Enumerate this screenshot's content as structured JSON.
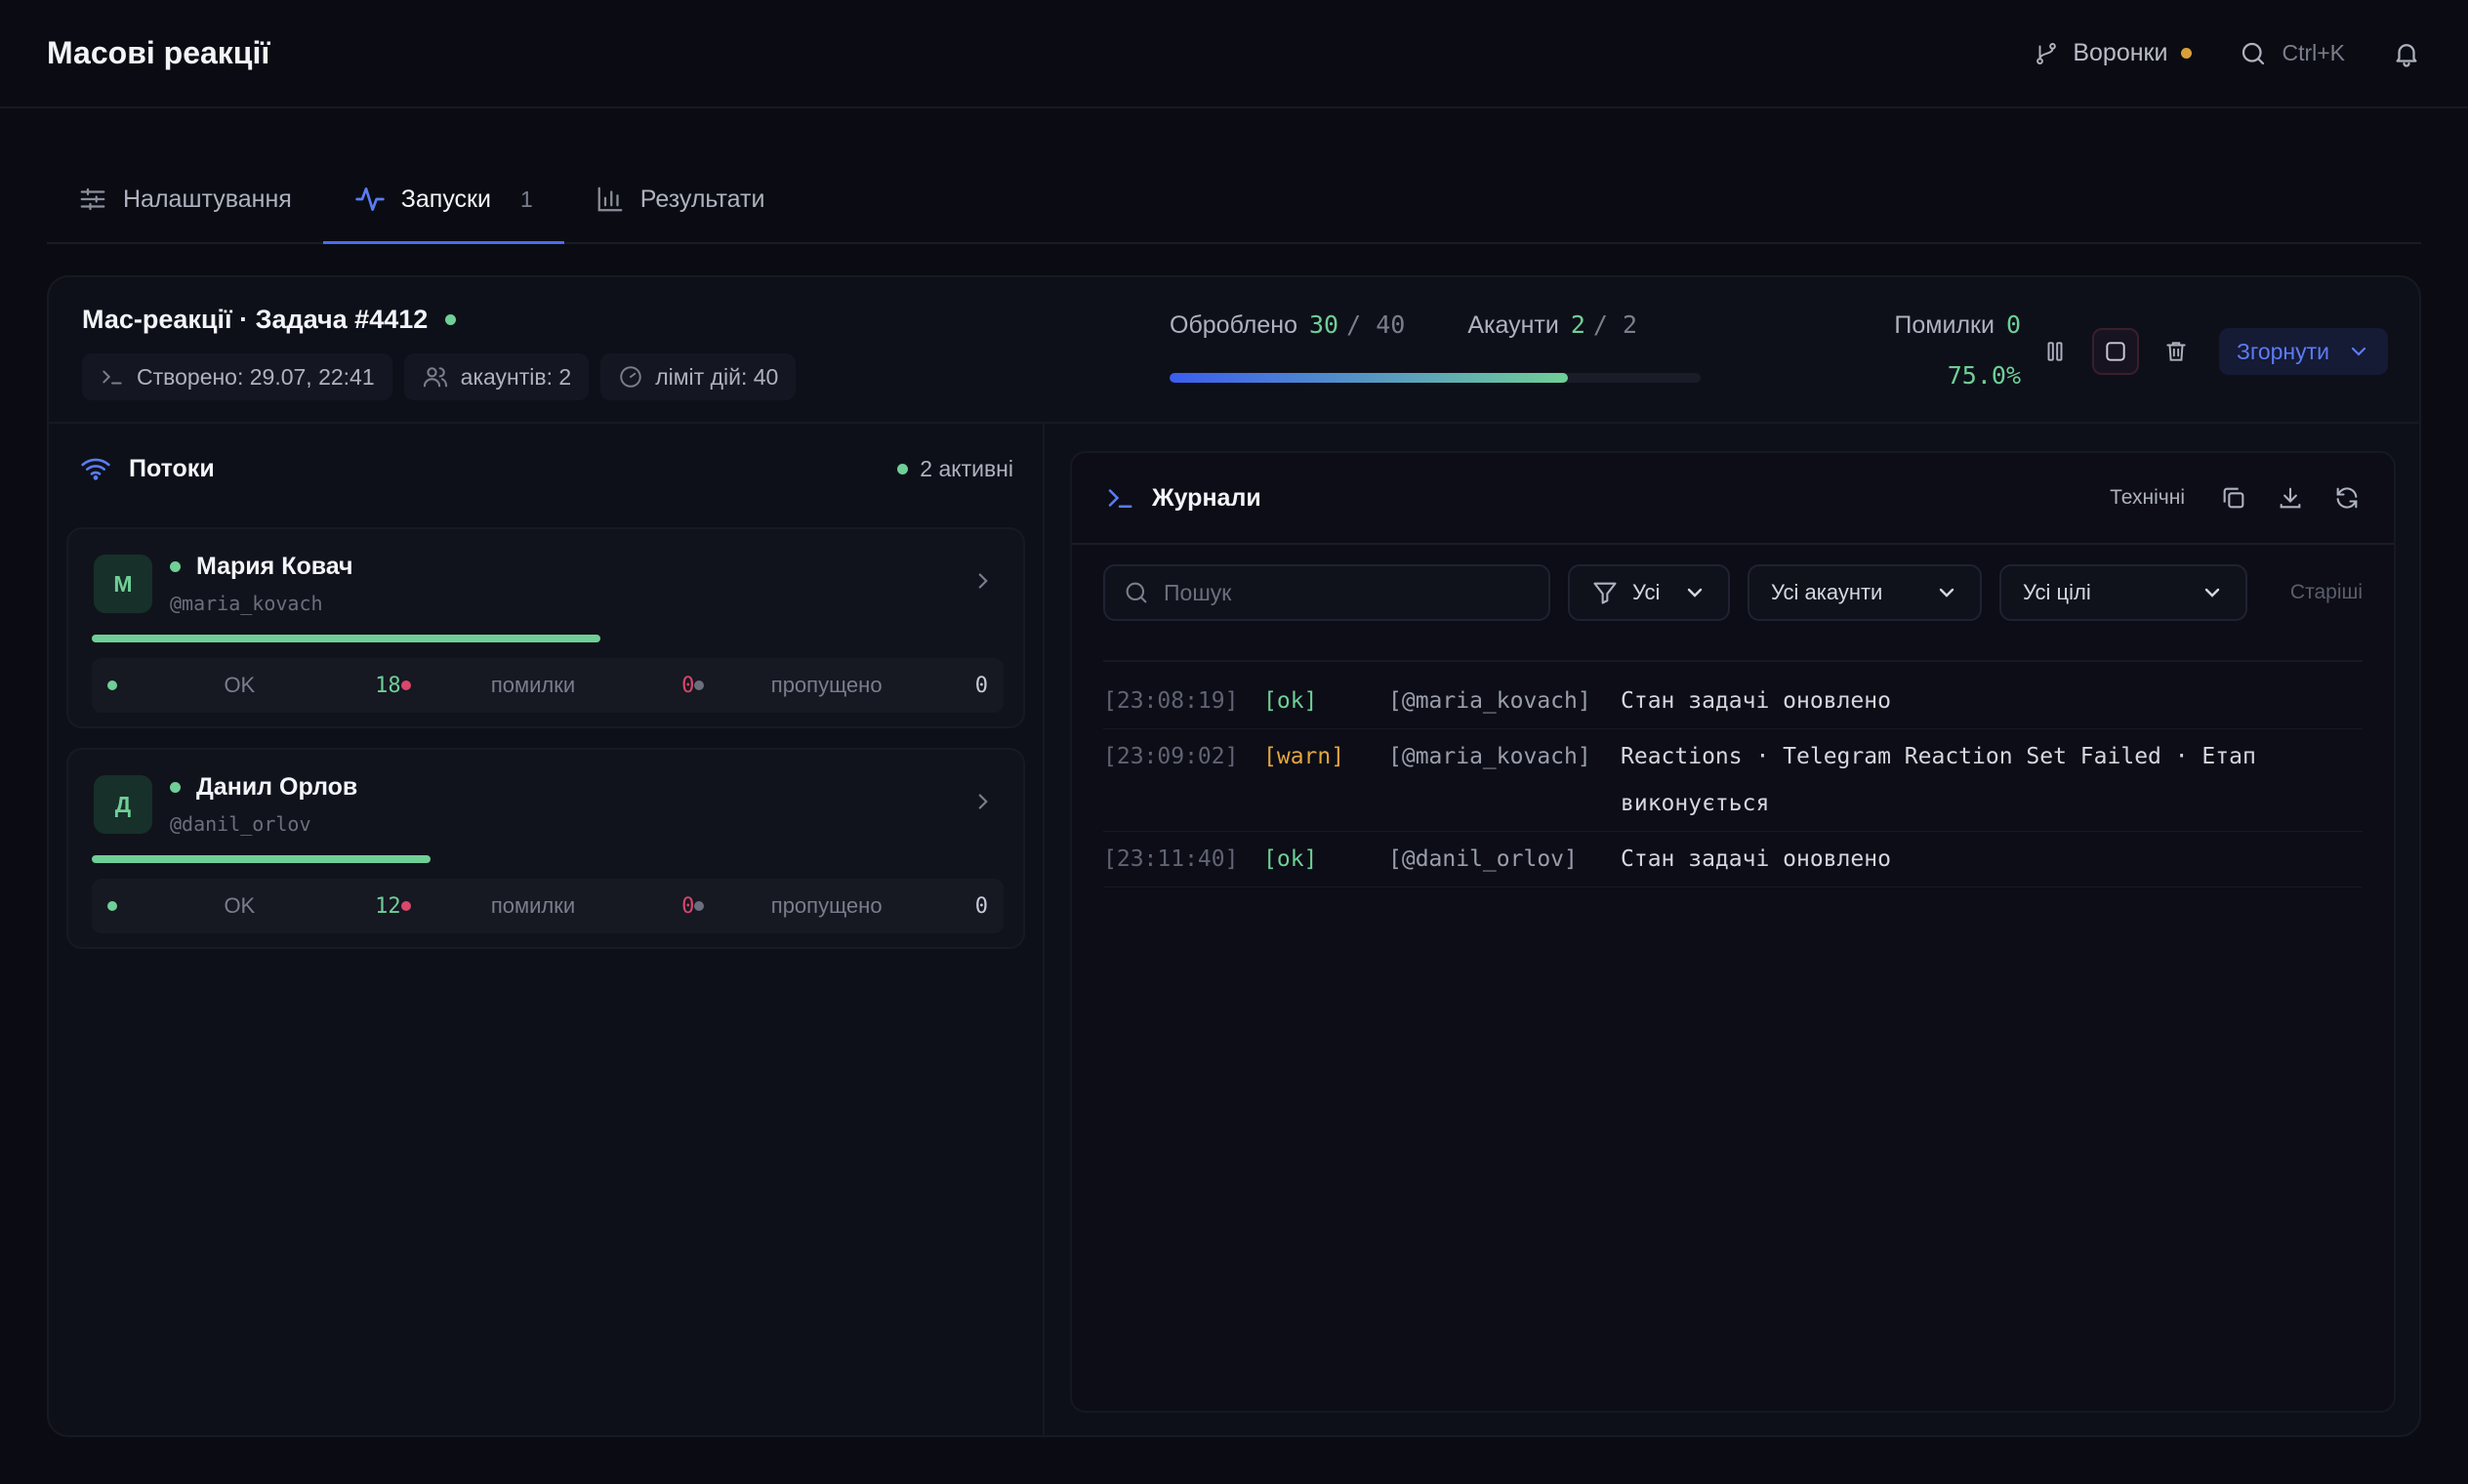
{
  "header": {
    "title": "Масові реакції",
    "funnels_label": "Воронки",
    "search_shortcut": "Ctrl+K"
  },
  "tabs": [
    {
      "label": "Налаштування"
    },
    {
      "label": "Запуски",
      "count": "1"
    },
    {
      "label": "Результати"
    }
  ],
  "task": {
    "title": "Мас-реакції · Задача #4412",
    "chips": {
      "created": "Створено: 29.07, 22:41",
      "accounts": "акаунтів: 2",
      "limit": "ліміт дій: 40"
    },
    "processed_label": "Оброблено",
    "processed_value": "30",
    "processed_total": "/ 40",
    "accounts_label": "Акаунти",
    "accounts_value": "2",
    "accounts_total": "/ 2",
    "progress_fraction": 0.75,
    "errors_label": "Помилки",
    "errors_value": "0",
    "percent": "75.0%",
    "collapse_label": "Згорнути"
  },
  "streams": {
    "title": "Потоки",
    "active_label": "2 активні",
    "accounts": [
      {
        "initial": "М",
        "name": "Мария Ковач",
        "handle": "@maria_kovach",
        "progress_fraction": 0.558,
        "ok_label": "OK",
        "ok": "18",
        "err_label": "помилки",
        "err": "0",
        "skip_label": "пропущено",
        "skip": "0"
      },
      {
        "initial": "Д",
        "name": "Данил Орлов",
        "handle": "@danil_orlov",
        "progress_fraction": 0.372,
        "ok_label": "OK",
        "ok": "12",
        "err_label": "помилки",
        "err": "0",
        "skip_label": "пропущено",
        "skip": "0"
      }
    ]
  },
  "logs": {
    "title": "Журнали",
    "technical_label": "Технічні",
    "search_placeholder": "Пошук",
    "filter_all": "Усі",
    "filter_accounts": "Усі акаунти",
    "filter_targets": "Усі цілі",
    "older_label": "Старіші",
    "entries": [
      {
        "time": "[23:08:19]",
        "level": "[ok]",
        "account": "[@maria_kovach]",
        "message": "Стан задачі оновлено"
      },
      {
        "time": "[23:09:02]",
        "level": "[warn]",
        "account": "[@maria_kovach]",
        "message": "Reactions · Telegram Reaction Set Failed · Етап виконується"
      },
      {
        "time": "[23:11:40]",
        "level": "[ok]",
        "account": "[@danil_orlov]",
        "message": "Стан задачі оновлено"
      }
    ]
  },
  "colors": {
    "accent": "#4a6cf0",
    "success": "#6fcf97",
    "warning": "#e3a63f",
    "danger": "#d9476a"
  }
}
